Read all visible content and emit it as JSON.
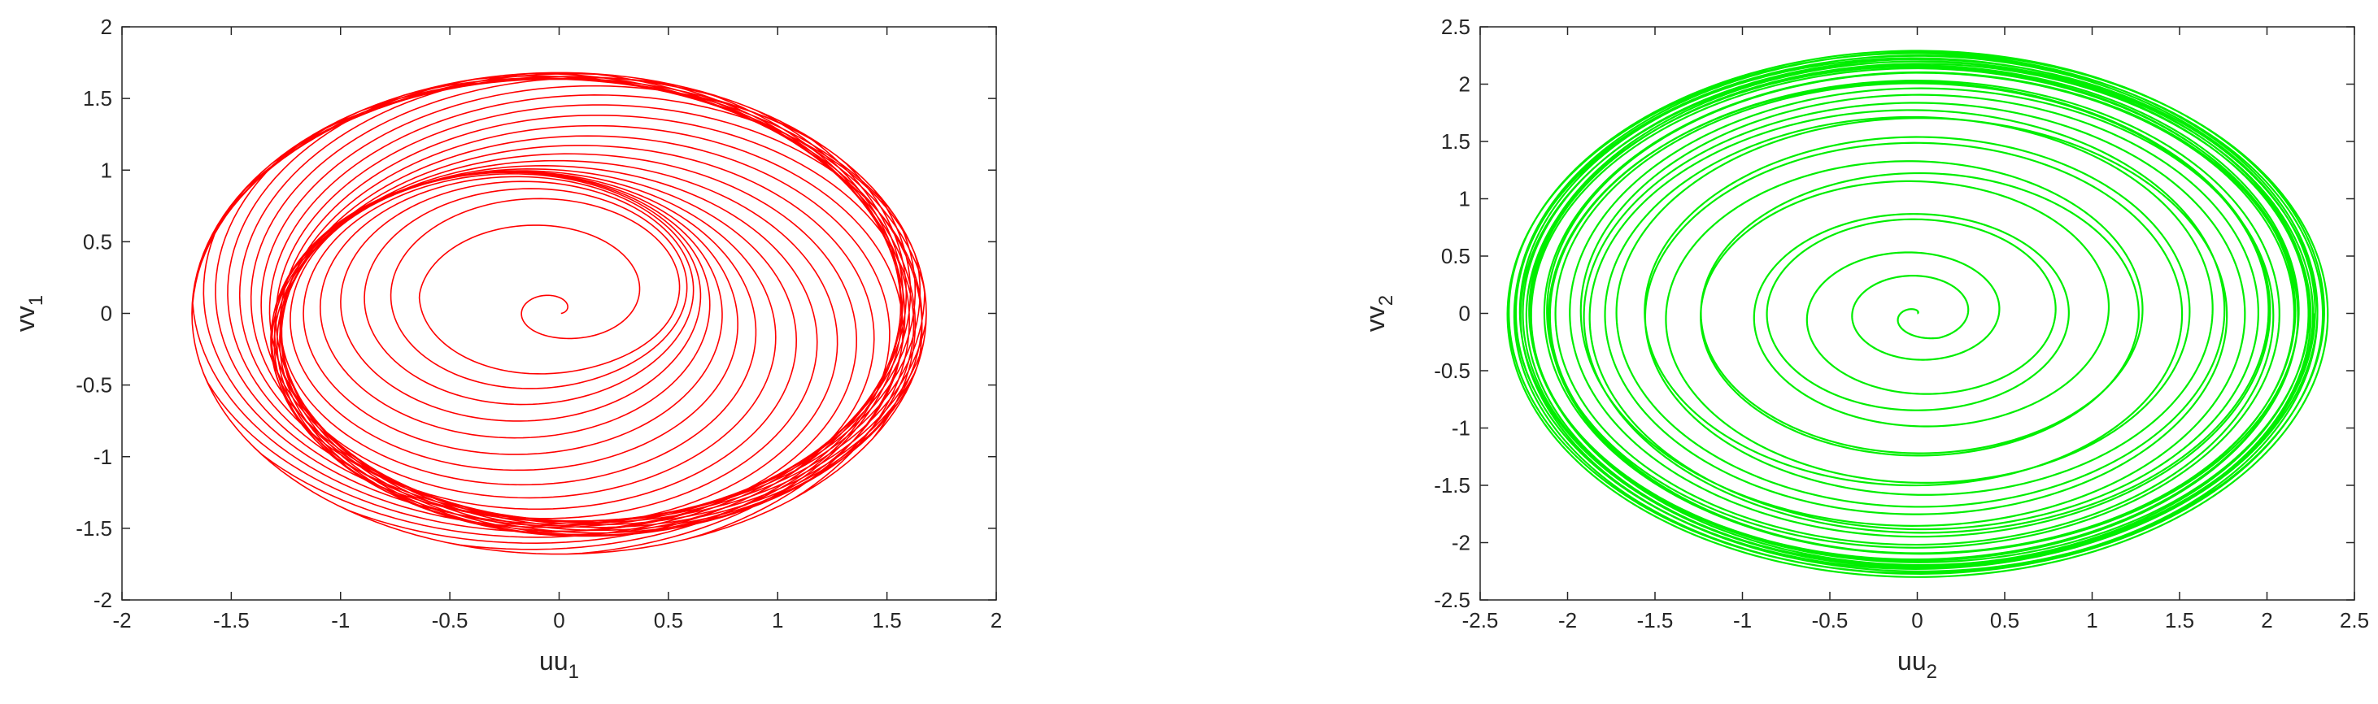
{
  "colors": {
    "background": "#ffffff",
    "axes": "#262626"
  },
  "chart_data": [
    {
      "type": "line",
      "description_series": "phase portrait spiral converging outward to a dense limit cycle",
      "color": "#ff0000",
      "xlabel": {
        "base": "uu",
        "sub": "1"
      },
      "ylabel": {
        "base": "vv",
        "sub": "1"
      },
      "xlim": [
        -2,
        2
      ],
      "ylim": [
        -2,
        2
      ],
      "xticks": [
        "-2",
        "-1.5",
        "-1",
        "-0.5",
        "0",
        "0.5",
        "1",
        "1.5",
        "2"
      ],
      "yticks": [
        "-2",
        "-1.5",
        "-1",
        "-0.5",
        "0",
        "0.5",
        "1",
        "1.5",
        "2"
      ],
      "xtick_values": [
        -2,
        -1.5,
        -1,
        -0.5,
        0,
        0.5,
        1,
        1.5,
        2
      ],
      "ytick_values": [
        -2,
        -1.5,
        -1,
        -0.5,
        0,
        0.5,
        1,
        1.5,
        2
      ],
      "grid": false,
      "trajectory": {
        "start": [
          0,
          0
        ],
        "outer_radius_x": 1.68,
        "outer_radius_y": 1.68,
        "inner_hole_radius": 0.25,
        "loops": 60,
        "wobble_amplitude": 0.35,
        "wobble_frequency": 14
      }
    },
    {
      "type": "line",
      "color": "#00ee00",
      "xlabel": {
        "base": "uu",
        "sub": "2"
      },
      "ylabel": {
        "base": "vv",
        "sub": "2"
      },
      "xlim": [
        -2.5,
        2.5
      ],
      "ylim": [
        -2.5,
        2.5
      ],
      "xticks": [
        "-2.5",
        "-2",
        "-1.5",
        "-1",
        "-0.5",
        "0",
        "0.5",
        "1",
        "1.5",
        "2",
        "2.5"
      ],
      "yticks": [
        "-2.5",
        "-2",
        "-1.5",
        "-1",
        "-0.5",
        "0",
        "0.5",
        "1",
        "1.5",
        "2",
        "2.5"
      ],
      "xtick_values": [
        -2.5,
        -2,
        -1.5,
        -1,
        -0.5,
        0,
        0.5,
        1,
        1.5,
        2,
        2.5
      ],
      "ytick_values": [
        -2.5,
        -2,
        -1.5,
        -1,
        -0.5,
        0,
        0.5,
        1,
        1.5,
        2,
        2.5
      ],
      "grid": false,
      "trajectory": {
        "start": [
          0,
          0
        ],
        "outer_radius_x": 2.35,
        "outer_radius_y": 2.3,
        "loops": 34,
        "wobble_amplitude": 0.12,
        "wobble_frequency": 3
      }
    }
  ]
}
